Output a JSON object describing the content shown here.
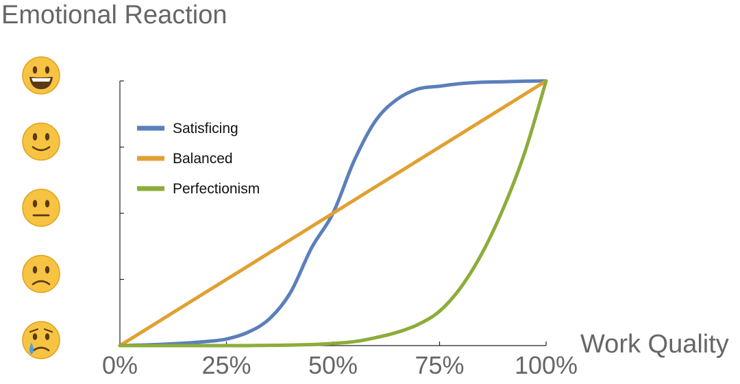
{
  "chart_data": {
    "type": "line",
    "title": "",
    "xlabel": "Work Quality",
    "ylabel": "Emotional Reaction",
    "xlim": [
      0,
      1
    ],
    "ylim": [
      0,
      1
    ],
    "x_ticks": [
      {
        "value": 0,
        "label": "0%"
      },
      {
        "value": 0.25,
        "label": "25%"
      },
      {
        "value": 0.5,
        "label": "50%"
      },
      {
        "value": 0.75,
        "label": "75%"
      },
      {
        "value": 1,
        "label": "100%"
      }
    ],
    "y_ticks": [
      {
        "value": 0,
        "icon": "crying-face-icon"
      },
      {
        "value": 0.25,
        "icon": "frowning-face-icon"
      },
      {
        "value": 0.5,
        "icon": "neutral-face-icon"
      },
      {
        "value": 0.75,
        "icon": "slightly-smiling-face-icon"
      },
      {
        "value": 1,
        "icon": "grinning-face-icon"
      }
    ],
    "grid": false,
    "legend_position": "top-left",
    "x": [
      0,
      0.1,
      0.2,
      0.25,
      0.3,
      0.35,
      0.4,
      0.45,
      0.5,
      0.55,
      0.6,
      0.65,
      0.7,
      0.75,
      0.8,
      0.85,
      0.9,
      0.95,
      1
    ],
    "series": [
      {
        "name": "Satisficing",
        "color": "#5b7fba",
        "values": [
          0,
          0.005,
          0.015,
          0.025,
          0.05,
          0.1,
          0.2,
          0.37,
          0.5,
          0.7,
          0.85,
          0.93,
          0.97,
          0.98,
          0.99,
          0.995,
          0.997,
          0.999,
          1
        ]
      },
      {
        "name": "Balanced",
        "color": "#e1a030",
        "values": [
          0,
          0.1,
          0.2,
          0.25,
          0.3,
          0.35,
          0.4,
          0.45,
          0.5,
          0.55,
          0.6,
          0.65,
          0.7,
          0.75,
          0.8,
          0.85,
          0.9,
          0.95,
          1
        ]
      },
      {
        "name": "Perfectionism",
        "color": "#8cad3a",
        "values": [
          0,
          0,
          0,
          0,
          0,
          0.001,
          0.002,
          0.004,
          0.008,
          0.015,
          0.03,
          0.05,
          0.08,
          0.13,
          0.22,
          0.35,
          0.52,
          0.73,
          1
        ]
      }
    ]
  }
}
